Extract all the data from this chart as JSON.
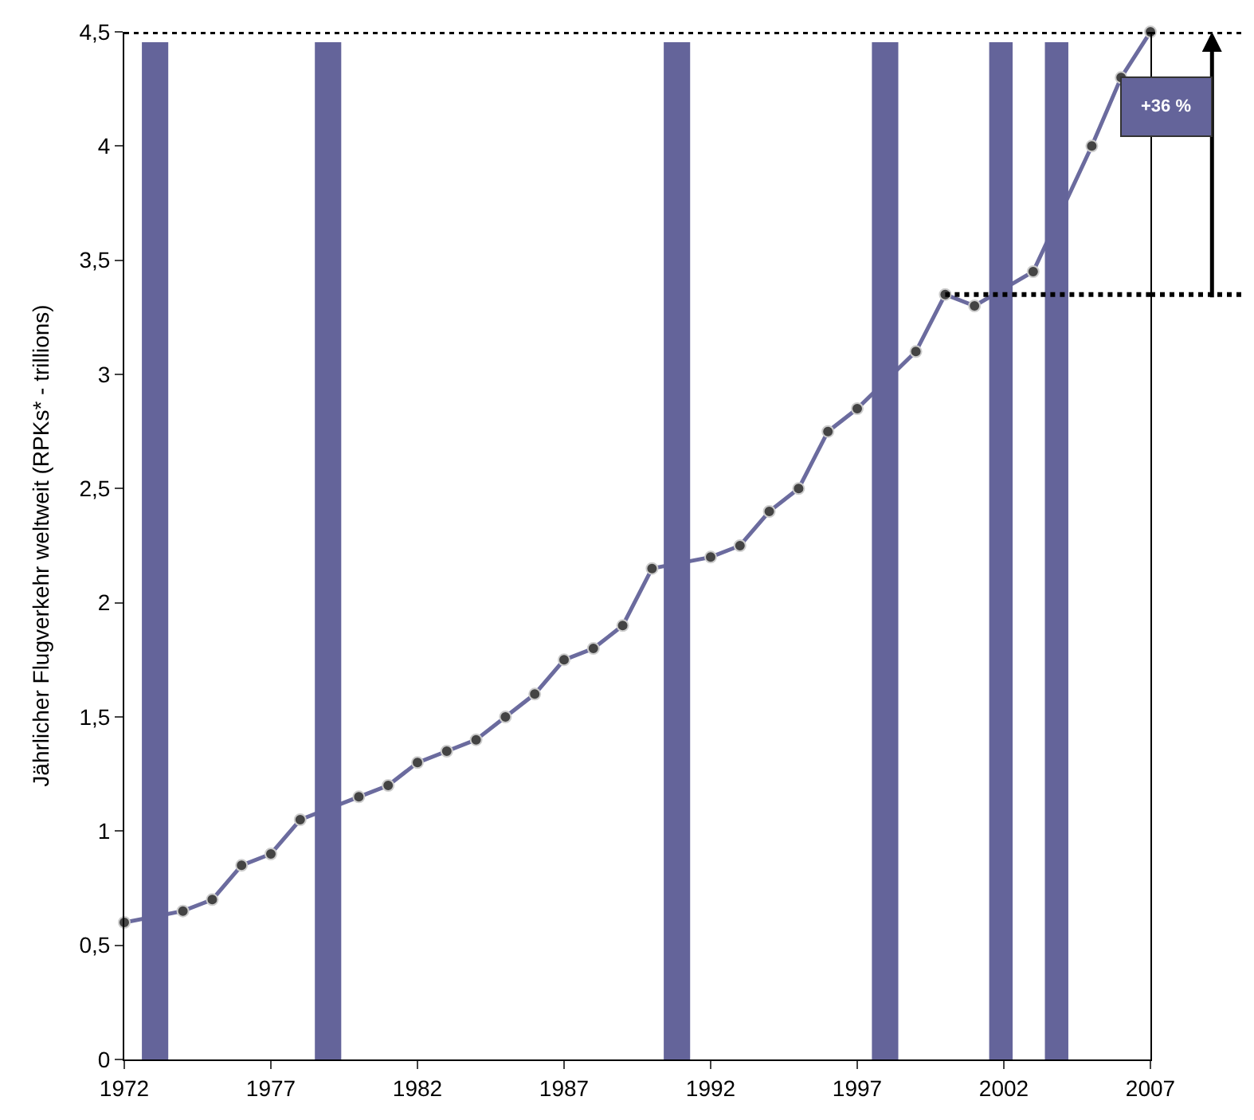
{
  "chart_data": {
    "type": "line",
    "ylabel": "Jährlicher Flugverkehr weltweit (RPKs* - trillions)",
    "x": [
      1972,
      1973,
      1974,
      1975,
      1976,
      1977,
      1978,
      1979,
      1980,
      1981,
      1982,
      1983,
      1984,
      1985,
      1986,
      1987,
      1988,
      1989,
      1990,
      1991,
      1992,
      1993,
      1994,
      1995,
      1996,
      1997,
      1998,
      1999,
      2000,
      2001,
      2002,
      2003,
      2004,
      2005,
      2006,
      2007
    ],
    "series": [
      {
        "color": "#6b6b9e",
        "values": [
          0.6,
          null,
          0.65,
          0.7,
          0.85,
          0.9,
          1.05,
          null,
          1.15,
          1.2,
          1.3,
          1.35,
          1.4,
          1.5,
          1.6,
          1.75,
          1.8,
          1.9,
          2.15,
          null,
          2.2,
          2.25,
          2.4,
          2.5,
          2.75,
          2.85,
          null,
          3.1,
          3.35,
          3.3,
          null,
          3.45,
          null,
          4.0,
          4.3,
          4.5
        ]
      }
    ],
    "marker": "circle",
    "xlim": [
      1972,
      2007
    ],
    "xticks": [
      1972,
      1977,
      1982,
      1987,
      1992,
      1997,
      2002,
      2007
    ],
    "ylim": [
      0,
      4.5
    ],
    "yticks": [
      {
        "value": 0,
        "label": "0"
      },
      {
        "value": 0.5,
        "label": "0,5"
      },
      {
        "value": 1,
        "label": "1"
      },
      {
        "value": 1.5,
        "label": "1,5"
      },
      {
        "value": 2,
        "label": "2"
      },
      {
        "value": 2.5,
        "label": "2,5"
      },
      {
        "value": 3,
        "label": "3"
      },
      {
        "value": 3.5,
        "label": "3,5"
      },
      {
        "value": 4,
        "label": "4"
      },
      {
        "value": 4.5,
        "label": "4,5"
      }
    ],
    "bands": [
      {
        "axis": "x",
        "from": 1972.6,
        "to": 1973.5,
        "color": "#64649a"
      },
      {
        "axis": "x",
        "from": 1978.5,
        "to": 1979.4,
        "color": "#64649a"
      },
      {
        "axis": "x",
        "from": 1990.4,
        "to": 1991.3,
        "color": "#64649a"
      },
      {
        "axis": "x",
        "from": 1997.5,
        "to": 1998.4,
        "color": "#64649a"
      },
      {
        "axis": "x",
        "from": 2001.5,
        "to": 2002.3,
        "color": "#64649a"
      },
      {
        "axis": "x",
        "from": 2003.4,
        "to": 2004.2,
        "color": "#64649a"
      }
    ],
    "ref_lines": [
      {
        "axis": "y",
        "value": 3.35,
        "line_style": "dotted",
        "color": "#000000"
      },
      {
        "axis": "y",
        "value": 4.5,
        "line_style": "dotted",
        "color": "#000000"
      }
    ],
    "annotations": [
      "+36 %"
    ]
  }
}
